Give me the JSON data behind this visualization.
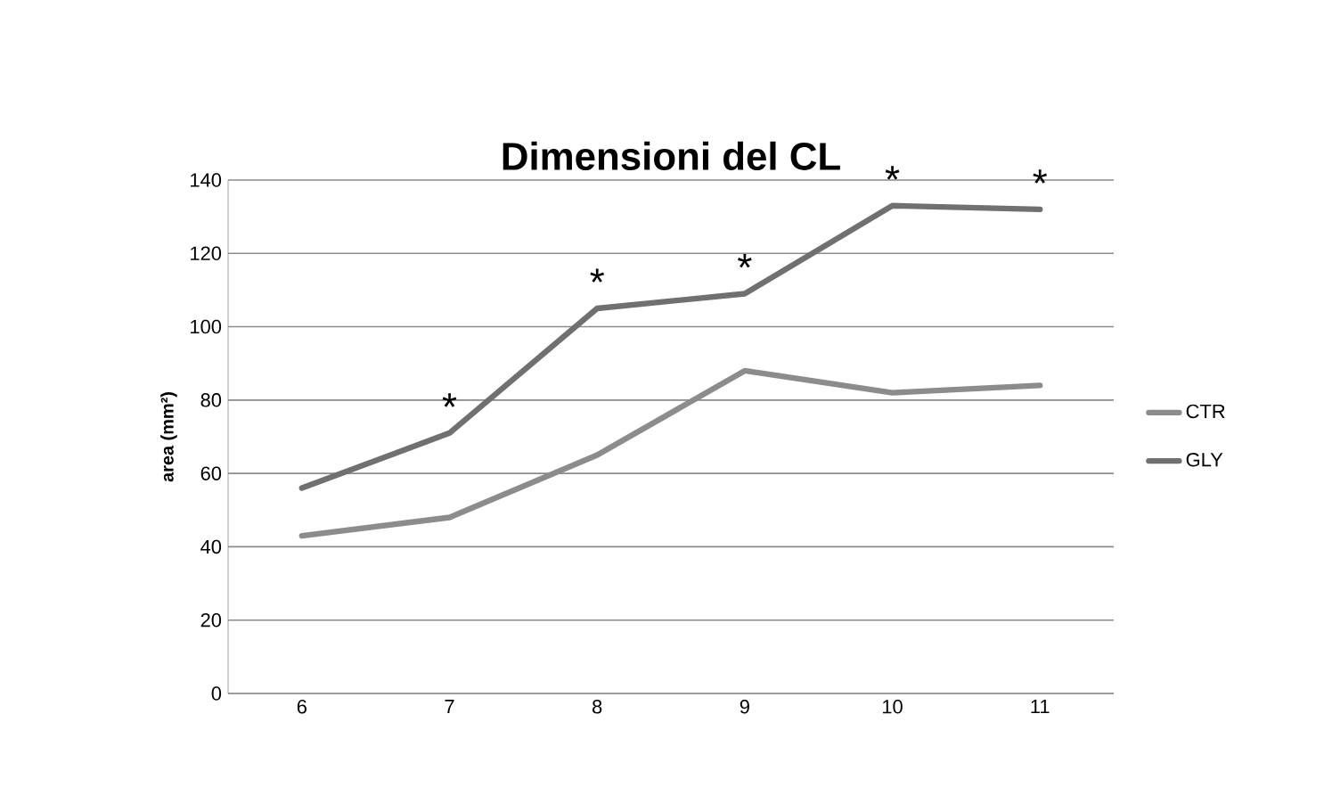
{
  "chart_data": {
    "type": "line",
    "title": "**Dimensioni del CL**",
    "ylabel": "area (mm²)",
    "categories": [
      "6",
      "7",
      "8",
      "9",
      "10",
      "11"
    ],
    "series": [
      {
        "name": "CTR",
        "color": "#8c8c8c",
        "values": [
          43,
          48,
          65,
          88,
          82,
          84
        ]
      },
      {
        "name": "GLY",
        "color": "#707070",
        "values": [
          56,
          71,
          105,
          109,
          133,
          132
        ]
      }
    ],
    "ylim": [
      0,
      140
    ],
    "yticks": [
      0,
      20,
      40,
      60,
      80,
      100,
      120,
      140
    ],
    "grid": "y",
    "legend": "right",
    "marker": "none",
    "annotations": [
      {
        "text": "*",
        "x": "7",
        "y": 71
      },
      {
        "text": "*",
        "x": "8",
        "y": 105
      },
      {
        "text": "*",
        "x": "9",
        "y": 109
      },
      {
        "text": "*",
        "x": "10",
        "y": 133
      },
      {
        "text": "*",
        "x": "11",
        "y": 132
      }
    ]
  }
}
